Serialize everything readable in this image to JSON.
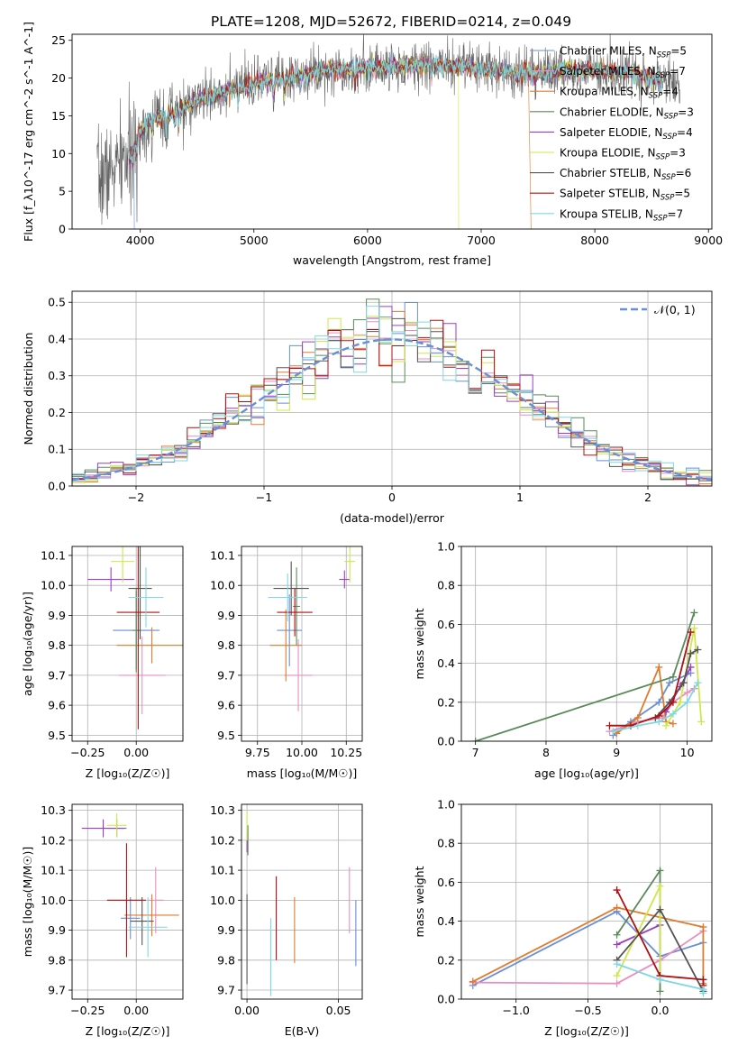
{
  "colors": {
    "chabrier_miles": "#6a8fd6",
    "salpeter_miles": "#e88fc0",
    "kroupa_miles": "#e07b2e",
    "chabrier_elodie": "#5a8a5a",
    "salpeter_elodie": "#9b3fc0",
    "kroupa_elodie": "#cde84a",
    "chabrier_stelib": "#555555",
    "salpeter_stelib": "#b01010",
    "kroupa_stelib": "#7fd8e0",
    "normal": "#6a8fd6",
    "grid": "#b0b0b0"
  },
  "chart_data": [
    {
      "id": "spectrum",
      "type": "line",
      "title": "PLATE=1208, MJD=52672, FIBERID=0214, z=0.049",
      "xlabel": "wavelength [Angstrom, rest frame]",
      "ylabel": "Flux [f_λ10^-17 erg cm^-2 s^-1 A^-1]",
      "xlim": [
        3400,
        9030
      ],
      "ylim": [
        0,
        25.8
      ],
      "xticks": [
        "4000",
        "5000",
        "6000",
        "7000",
        "8000",
        "9000"
      ],
      "yticks": [
        "0",
        "5",
        "10",
        "15",
        "20",
        "25"
      ],
      "grid": false,
      "legend_position": "top-right",
      "legend": [
        {
          "label": "Chabrier MILES, N",
          "nssp": "=5"
        },
        {
          "label": "Salpeter MILES, N",
          "nssp": "=7"
        },
        {
          "label": "Kroupa MILES, N",
          "nssp": "=4"
        },
        {
          "label": "Chabrier ELODIE, N",
          "nssp": "=3"
        },
        {
          "label": "Salpeter ELODIE, N",
          "nssp": "=4"
        },
        {
          "label": "Kroupa ELODIE, N",
          "nssp": "=3"
        },
        {
          "label": "Chabrier STELIB, N",
          "nssp": "=6"
        },
        {
          "label": "Salpeter STELIB, N",
          "nssp": "=5"
        },
        {
          "label": "Kroupa STELIB, N",
          "nssp": "=7"
        }
      ],
      "continuum": {
        "x": [
          3620,
          3700,
          3800,
          3900,
          3950,
          4000,
          4100,
          4300,
          4500,
          4800,
          5100,
          5300,
          5600,
          5900,
          6200,
          6500,
          6800,
          7100,
          7400,
          7700,
          8000,
          8300,
          8600,
          8750
        ],
        "y": [
          6.5,
          7.2,
          8.5,
          9.5,
          10.5,
          13.0,
          14.5,
          15.5,
          17.0,
          18.5,
          19.5,
          20.0,
          21.0,
          21.2,
          21.5,
          21.8,
          21.5,
          21.0,
          20.5,
          21.0,
          21.0,
          20.8,
          19.5,
          19.0
        ]
      }
    },
    {
      "id": "residuals",
      "type": "area",
      "xlabel": "(data-model)/error",
      "ylabel": "Normed distribution",
      "xlim": [
        -2.5,
        2.5
      ],
      "ylim": [
        0,
        0.53
      ],
      "xticks": [
        "−2",
        "−1",
        "0",
        "1",
        "2"
      ],
      "xtick_values": [
        -2,
        -1,
        0,
        1,
        2
      ],
      "yticks": [
        "0.0",
        "0.1",
        "0.2",
        "0.3",
        "0.4",
        "0.5"
      ],
      "ytick_values": [
        0,
        0.1,
        0.2,
        0.3,
        0.4,
        0.5
      ],
      "grid": true,
      "legend_position": "top-right",
      "legend": "𝒩(0, 1)",
      "bin_width": 0.1
    },
    {
      "id": "age_vs_Z",
      "type": "scatter",
      "xlabel": "Z [log₁₀(Z/Z☉)]",
      "ylabel": "age  [log₁₀(age/yr)]",
      "xlim": [
        -0.33,
        0.24
      ],
      "ylim": [
        9.48,
        10.13
      ],
      "xticks": [
        "−0.25",
        "0.00"
      ],
      "xtick_values": [
        -0.25,
        0.0
      ],
      "yticks": [
        "9.5",
        "9.6",
        "9.7",
        "9.8",
        "9.9",
        "10.0",
        "10.1"
      ],
      "ytick_values": [
        9.5,
        9.6,
        9.7,
        9.8,
        9.9,
        10.0,
        10.1
      ],
      "points": [
        {
          "series": "chabrier_miles",
          "x": 0.0,
          "y": 9.85,
          "xerr": 0.12,
          "yerr": 0.13
        },
        {
          "series": "salpeter_miles",
          "x": 0.03,
          "y": 9.7,
          "xerr": 0.12,
          "yerr": 0.13
        },
        {
          "series": "kroupa_miles",
          "x": 0.08,
          "y": 9.8,
          "xerr": 0.18,
          "yerr": 0.06
        },
        {
          "series": "chabrier_elodie",
          "x": 0.0,
          "y": 9.85,
          "xerr": 0.02,
          "yerr": 0.14
        },
        {
          "series": "salpeter_elodie",
          "x": -0.13,
          "y": 10.02,
          "xerr": 0.12,
          "yerr": 0.04
        },
        {
          "series": "kroupa_elodie",
          "x": -0.07,
          "y": 10.08,
          "xerr": 0.06,
          "yerr": 0.07
        },
        {
          "series": "chabrier_stelib",
          "x": 0.02,
          "y": 9.99,
          "xerr": 0.06,
          "yerr": 0.17
        },
        {
          "series": "salpeter_stelib",
          "x": 0.01,
          "y": 9.91,
          "xerr": 0.11,
          "yerr": 0.39
        },
        {
          "series": "kroupa_stelib",
          "x": 0.05,
          "y": 9.96,
          "xerr": 0.09,
          "yerr": 0.1
        }
      ]
    },
    {
      "id": "age_vs_mass",
      "type": "scatter",
      "xlabel": "mass [log₁₀(M/M☉)]",
      "ylabel": "",
      "xlim": [
        9.66,
        10.34
      ],
      "ylim": [
        9.48,
        10.13
      ],
      "xticks": [
        "9.75",
        "10.00",
        "10.25"
      ],
      "xtick_values": [
        9.75,
        10.0,
        10.25
      ],
      "yticks": [
        "9.5",
        "9.6",
        "9.7",
        "9.8",
        "9.9",
        "10.0",
        "10.1"
      ],
      "ytick_values": [
        9.5,
        9.6,
        9.7,
        9.8,
        9.9,
        10.0,
        10.1
      ],
      "points": [
        {
          "series": "chabrier_miles",
          "x": 9.93,
          "y": 9.85,
          "xerr": 0.07,
          "yerr": 0.12
        },
        {
          "series": "salpeter_miles",
          "x": 9.98,
          "y": 9.7,
          "xerr": 0.08,
          "yerr": 0.12
        },
        {
          "series": "kroupa_miles",
          "x": 9.91,
          "y": 9.8,
          "xerr": 0.09,
          "yerr": 0.12
        },
        {
          "series": "chabrier_elodie",
          "x": 9.97,
          "y": 9.93,
          "xerr": 0.02,
          "yerr": 0.13
        },
        {
          "series": "salpeter_elodie",
          "x": 10.24,
          "y": 10.02,
          "xerr": 0.03,
          "yerr": 0.03
        },
        {
          "series": "kroupa_elodie",
          "x": 10.27,
          "y": 10.08,
          "xerr": 0.03,
          "yerr": 0.07
        },
        {
          "series": "chabrier_stelib",
          "x": 9.94,
          "y": 9.99,
          "xerr": 0.1,
          "yerr": 0.09
        },
        {
          "series": "salpeter_stelib",
          "x": 9.96,
          "y": 9.91,
          "xerr": 0.1,
          "yerr": 0.08
        },
        {
          "series": "kroupa_stelib",
          "x": 9.92,
          "y": 9.96,
          "xerr": 0.11,
          "yerr": 0.08
        }
      ]
    },
    {
      "id": "massweight_vs_age",
      "type": "line",
      "xlabel": "age  [log₁₀(age/yr)]",
      "ylabel": "mass weight",
      "xlim": [
        6.8,
        10.35
      ],
      "ylim": [
        0,
        1.0
      ],
      "xticks": [
        "7",
        "8",
        "9",
        "10"
      ],
      "xtick_values": [
        7,
        8,
        9,
        10
      ],
      "yticks": [
        "0.0",
        "0.2",
        "0.4",
        "0.6",
        "0.8",
        "1.0"
      ],
      "ytick_values": [
        0,
        0.2,
        0.4,
        0.6,
        0.8,
        1.0
      ],
      "series": [
        {
          "name": "chabrier_miles",
          "x": [
            8.95,
            9.2,
            9.6,
            9.75,
            10.05
          ],
          "y": [
            0.03,
            0.1,
            0.2,
            0.3,
            0.35
          ]
        },
        {
          "name": "salpeter_miles",
          "x": [
            8.9,
            9.3,
            9.65,
            9.8,
            10.0,
            10.1
          ],
          "y": [
            0.05,
            0.1,
            0.12,
            0.2,
            0.25,
            0.27
          ]
        },
        {
          "name": "kroupa_miles",
          "x": [
            9.0,
            9.3,
            9.6,
            9.7,
            9.8
          ],
          "y": [
            0.04,
            0.12,
            0.38,
            0.1,
            0.09
          ]
        },
        {
          "name": "chabrier_elodie",
          "x": [
            7.0,
            9.8,
            10.1
          ],
          "y": [
            0.0,
            0.33,
            0.66
          ]
        },
        {
          "name": "salpeter_elodie",
          "x": [
            9.7,
            9.9,
            10.05
          ],
          "y": [
            0.15,
            0.28,
            0.38
          ]
        },
        {
          "name": "kroupa_elodie",
          "x": [
            9.7,
            9.9,
            10.1,
            10.2
          ],
          "y": [
            0.08,
            0.2,
            0.58,
            0.1
          ]
        },
        {
          "name": "chabrier_stelib",
          "x": [
            9.55,
            9.75,
            9.95,
            10.05,
            10.15
          ],
          "y": [
            0.12,
            0.2,
            0.3,
            0.45,
            0.47
          ]
        },
        {
          "name": "salpeter_stelib",
          "x": [
            8.9,
            9.2,
            9.6,
            9.8,
            10.05
          ],
          "y": [
            0.08,
            0.08,
            0.13,
            0.2,
            0.56
          ]
        },
        {
          "name": "kroupa_stelib",
          "x": [
            8.95,
            9.3,
            9.6,
            9.8,
            10.0,
            10.15
          ],
          "y": [
            0.05,
            0.08,
            0.1,
            0.14,
            0.2,
            0.3
          ]
        }
      ]
    },
    {
      "id": "mass_vs_Z",
      "type": "scatter",
      "xlabel": "Z [log₁₀(Z/Z☉)]",
      "ylabel": "mass [log₁₀(M/M☉)]",
      "xlim": [
        -0.33,
        0.24
      ],
      "ylim": [
        9.67,
        10.32
      ],
      "xticks": [
        "−0.25",
        "0.00"
      ],
      "xtick_values": [
        -0.25,
        0.0
      ],
      "yticks": [
        "9.7",
        "9.8",
        "9.9",
        "10.0",
        "10.1",
        "10.2",
        "10.3"
      ],
      "ytick_values": [
        9.7,
        9.8,
        9.9,
        10.0,
        10.1,
        10.2,
        10.3
      ],
      "points": [
        {
          "series": "chabrier_miles",
          "x": -0.03,
          "y": 9.94,
          "xerr": 0.05,
          "yerr": 0.07
        },
        {
          "series": "salpeter_miles",
          "x": 0.1,
          "y": 10.0,
          "xerr": 0.04,
          "yerr": 0.11
        },
        {
          "series": "kroupa_miles",
          "x": 0.08,
          "y": 9.95,
          "xerr": 0.14,
          "yerr": 0.07
        },
        {
          "series": "chabrier_elodie",
          "x": -0.1,
          "y": 10.24,
          "xerr": 0.05,
          "yerr": 0.03
        },
        {
          "series": "salpeter_elodie",
          "x": -0.17,
          "y": 10.24,
          "xerr": 0.11,
          "yerr": 0.03
        },
        {
          "series": "kroupa_elodie",
          "x": -0.1,
          "y": 10.25,
          "xerr": 0.05,
          "yerr": 0.04
        },
        {
          "series": "chabrier_stelib",
          "x": 0.03,
          "y": 9.93,
          "xerr": 0.06,
          "yerr": 0.08
        },
        {
          "series": "salpeter_stelib",
          "x": -0.05,
          "y": 10.0,
          "xerr": 0.1,
          "yerr": 0.19
        },
        {
          "series": "kroupa_stelib",
          "x": 0.06,
          "y": 9.91,
          "xerr": 0.1,
          "yerr": 0.1
        }
      ]
    },
    {
      "id": "mass_vs_EBV",
      "type": "scatter",
      "xlabel": "E(B-V)",
      "ylabel": "",
      "xlim": [
        -0.003,
        0.063
      ],
      "ylim": [
        9.67,
        10.32
      ],
      "xticks": [
        "0.00",
        "0.05"
      ],
      "xtick_values": [
        0.0,
        0.05
      ],
      "yticks": [
        "9.7",
        "9.8",
        "9.9",
        "10.0",
        "10.1",
        "10.2",
        "10.3"
      ],
      "ytick_values": [
        9.7,
        9.8,
        9.9,
        10.0,
        10.1,
        10.2,
        10.3
      ],
      "points": [
        {
          "series": "chabrier_miles",
          "x": 0.0595,
          "y": 9.89,
          "xerr": 0,
          "yerr": 0.11
        },
        {
          "series": "salpeter_miles",
          "x": 0.056,
          "y": 10.0,
          "xerr": 0,
          "yerr": 0.11
        },
        {
          "series": "kroupa_miles",
          "x": 0.026,
          "y": 9.9,
          "xerr": 0,
          "yerr": 0.11
        },
        {
          "series": "chabrier_elodie",
          "x": 0.0005,
          "y": 10.2,
          "xerr": 0,
          "yerr": 0.05
        },
        {
          "series": "salpeter_elodie",
          "x": 0.0,
          "y": 10.19,
          "xerr": 0,
          "yerr": 0.03
        },
        {
          "series": "kroupa_elodie",
          "x": 0.0,
          "y": 10.25,
          "xerr": 0,
          "yerr": 0.05
        },
        {
          "series": "chabrier_stelib",
          "x": 0.0,
          "y": 9.87,
          "xerr": 0,
          "yerr": 0.15
        },
        {
          "series": "salpeter_stelib",
          "x": 0.016,
          "y": 9.94,
          "xerr": 0,
          "yerr": 0.14
        },
        {
          "series": "kroupa_stelib",
          "x": 0.013,
          "y": 9.81,
          "xerr": 0,
          "yerr": 0.13
        }
      ]
    },
    {
      "id": "massweight_vs_Z",
      "type": "line",
      "xlabel": "Z [log₁₀(Z/Z☉)]",
      "ylabel": "mass weight",
      "xlim": [
        -1.38,
        0.36
      ],
      "ylim": [
        0,
        1.0
      ],
      "xticks": [
        "−1.0",
        "−0.5",
        "0.0"
      ],
      "xtick_values": [
        -1.0,
        -0.5,
        0.0
      ],
      "yticks": [
        "0.0",
        "0.2",
        "0.4",
        "0.6",
        "0.8",
        "1.0"
      ],
      "ytick_values": [
        0,
        0.2,
        0.4,
        0.6,
        0.8,
        1.0
      ],
      "series": [
        {
          "name": "chabrier_miles",
          "x": [
            -1.3,
            -0.3,
            0.0,
            0.3
          ],
          "y": [
            0.07,
            0.45,
            0.22,
            0.29
          ]
        },
        {
          "name": "salpeter_miles",
          "x": [
            -1.3,
            -0.3,
            0.0,
            0.3
          ],
          "y": [
            0.085,
            0.08,
            0.2,
            0.35
          ]
        },
        {
          "name": "kroupa_miles",
          "x": [
            -1.3,
            -0.3,
            0.3,
            0.3
          ],
          "y": [
            0.09,
            0.47,
            0.37,
            0.08
          ]
        },
        {
          "name": "chabrier_elodie",
          "x": [
            -0.3,
            0.0,
            0.0
          ],
          "y": [
            0.33,
            0.66,
            0.04
          ]
        },
        {
          "name": "salpeter_elodie",
          "x": [
            -0.3,
            0.0,
            0.0
          ],
          "y": [
            0.28,
            0.38,
            0.12
          ]
        },
        {
          "name": "kroupa_elodie",
          "x": [
            -0.3,
            0.0,
            0.0
          ],
          "y": [
            0.12,
            0.58,
            0.1
          ]
        },
        {
          "name": "chabrier_stelib",
          "x": [
            -0.3,
            0.0,
            0.3,
            0.3
          ],
          "y": [
            0.2,
            0.46,
            0.04,
            0.1
          ]
        },
        {
          "name": "salpeter_stelib",
          "x": [
            -0.3,
            0.0,
            0.3,
            0.3
          ],
          "y": [
            0.56,
            0.12,
            0.1,
            0.07
          ]
        },
        {
          "name": "kroupa_stelib",
          "x": [
            -0.3,
            0.0,
            0.3,
            0.3
          ],
          "y": [
            0.18,
            0.1,
            0.05,
            0.03
          ]
        }
      ]
    }
  ]
}
